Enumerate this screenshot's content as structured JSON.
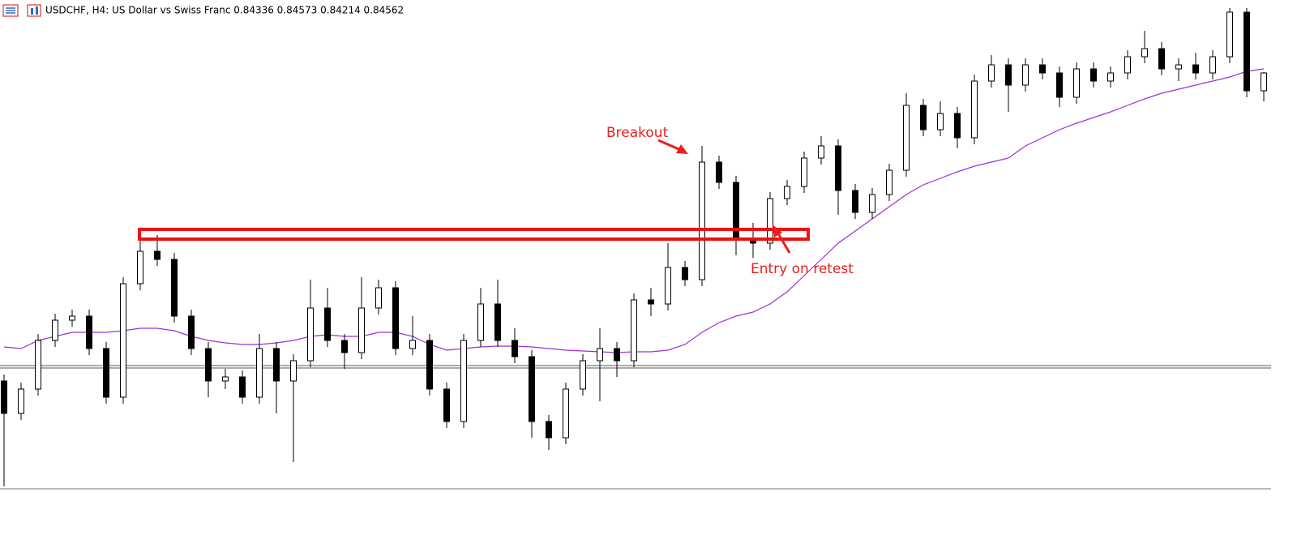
{
  "chart_data": {
    "type": "candlestick",
    "title": "USDCHF, H4:  US Dollar vs Swiss Franc  0.84336 0.84573 0.84214 0.84562",
    "annotations": [
      "Breakout",
      "Entry on retest"
    ],
    "ylim": [
      0.7943,
      0.8546
    ],
    "up_color": "#ffffff",
    "down_color": "#000000",
    "ma_color": "#9b30d9",
    "open": [
      0.8076,
      0.8036,
      0.8066,
      0.8126,
      0.8151,
      0.8156,
      0.8116,
      0.8056,
      0.8196,
      0.8236,
      0.8226,
      0.8156,
      0.8116,
      0.8076,
      0.8081,
      0.8056,
      0.8116,
      0.8076,
      0.8101,
      0.8166,
      0.8126,
      0.8111,
      0.8166,
      0.8191,
      0.8116,
      0.8126,
      0.8066,
      0.8026,
      0.8126,
      0.8171,
      0.8126,
      0.8106,
      0.8026,
      0.8006,
      0.8066,
      0.8101,
      0.8116,
      0.8101,
      0.8176,
      0.8171,
      0.8216,
      0.8201,
      0.8346,
      0.8321,
      0.8251,
      0.8246,
      0.8301,
      0.8316,
      0.8351,
      0.8366,
      0.8311,
      0.8284,
      0.8306,
      0.8336,
      0.8416,
      0.8386,
      0.8406,
      0.8376,
      0.8446,
      0.8466,
      0.8441,
      0.8466,
      0.8456,
      0.8426,
      0.8461,
      0.8446,
      0.8456,
      0.8476,
      0.8486,
      0.8461,
      0.8466,
      0.8456,
      0.8476,
      0.8531,
      0.8434
    ],
    "high": [
      0.8084,
      0.8074,
      0.8134,
      0.8159,
      0.8164,
      0.8164,
      0.8124,
      0.8204,
      0.8261,
      0.8256,
      0.8234,
      0.8164,
      0.8124,
      0.8091,
      0.8089,
      0.8134,
      0.8124,
      0.8109,
      0.8201,
      0.8191,
      0.8134,
      0.8204,
      0.8201,
      0.8199,
      0.8156,
      0.8134,
      0.8074,
      0.8134,
      0.8191,
      0.8201,
      0.8141,
      0.8114,
      0.8034,
      0.8074,
      0.8109,
      0.8141,
      0.8124,
      0.8184,
      0.8191,
      0.8246,
      0.8224,
      0.8366,
      0.8354,
      0.8329,
      0.8271,
      0.8309,
      0.8324,
      0.8359,
      0.8378,
      0.8374,
      0.8319,
      0.8314,
      0.8344,
      0.8431,
      0.8424,
      0.8421,
      0.8414,
      0.8454,
      0.8478,
      0.8474,
      0.8474,
      0.8474,
      0.8464,
      0.8469,
      0.8469,
      0.8464,
      0.8484,
      0.8508,
      0.8494,
      0.8474,
      0.8481,
      0.8484,
      0.8536,
      0.8536,
      0.8457
    ],
    "low": [
      0.7946,
      0.8028,
      0.8058,
      0.8118,
      0.8143,
      0.8108,
      0.8048,
      0.8048,
      0.8188,
      0.8218,
      0.8148,
      0.8108,
      0.8056,
      0.8066,
      0.8048,
      0.8048,
      0.8036,
      0.7976,
      0.8093,
      0.8118,
      0.8091,
      0.8103,
      0.8158,
      0.8108,
      0.8108,
      0.8058,
      0.8018,
      0.8018,
      0.8118,
      0.8118,
      0.8098,
      0.8006,
      0.7991,
      0.7998,
      0.8058,
      0.8051,
      0.8081,
      0.8093,
      0.8156,
      0.8163,
      0.8193,
      0.8193,
      0.8313,
      0.8231,
      0.8228,
      0.8238,
      0.8293,
      0.8308,
      0.8343,
      0.8281,
      0.8276,
      0.8276,
      0.8298,
      0.8328,
      0.8378,
      0.8378,
      0.8363,
      0.8368,
      0.8438,
      0.8408,
      0.8433,
      0.8448,
      0.8414,
      0.8418,
      0.8438,
      0.8438,
      0.8448,
      0.8468,
      0.8453,
      0.8446,
      0.8448,
      0.8448,
      0.8468,
      0.8426,
      0.8421
    ],
    "close": [
      0.8036,
      0.8066,
      0.8126,
      0.8151,
      0.8156,
      0.8116,
      0.8056,
      0.8196,
      0.8236,
      0.8226,
      0.8156,
      0.8116,
      0.8076,
      0.8081,
      0.8056,
      0.8116,
      0.8076,
      0.8101,
      0.8166,
      0.8126,
      0.8111,
      0.8166,
      0.8191,
      0.8116,
      0.8126,
      0.8066,
      0.8026,
      0.8126,
      0.8171,
      0.8126,
      0.8106,
      0.8026,
      0.8006,
      0.8066,
      0.8101,
      0.8116,
      0.8101,
      0.8176,
      0.8171,
      0.8216,
      0.8201,
      0.8346,
      0.8321,
      0.8251,
      0.8246,
      0.8301,
      0.8316,
      0.8351,
      0.8366,
      0.8311,
      0.8284,
      0.8306,
      0.8336,
      0.8416,
      0.8386,
      0.8406,
      0.8376,
      0.8446,
      0.8466,
      0.8441,
      0.8466,
      0.8456,
      0.8426,
      0.8461,
      0.8446,
      0.8456,
      0.8476,
      0.8486,
      0.8461,
      0.8466,
      0.8456,
      0.8476,
      0.8531,
      0.8434,
      0.8456
    ],
    "ma": [
      0.8118,
      0.8116,
      0.8126,
      0.8131,
      0.8136,
      0.8136,
      0.8136,
      0.8138,
      0.8141,
      0.8141,
      0.8138,
      0.8131,
      0.8126,
      0.8123,
      0.8121,
      0.8121,
      0.8123,
      0.8126,
      0.8131,
      0.8133,
      0.8131,
      0.8131,
      0.8136,
      0.8136,
      0.8131,
      0.8121,
      0.8114,
      0.8116,
      0.8118,
      0.8119,
      0.8119,
      0.8118,
      0.8116,
      0.8114,
      0.8113,
      0.8112,
      0.8111,
      0.8112,
      0.8112,
      0.8114,
      0.8121,
      0.8136,
      0.8148,
      0.8156,
      0.8161,
      0.8171,
      0.8186,
      0.8206,
      0.8226,
      0.8246,
      0.8261,
      0.8276,
      0.8291,
      0.8306,
      0.8318,
      0.8326,
      0.8334,
      0.8341,
      0.8346,
      0.8351,
      0.8366,
      0.8376,
      0.8386,
      0.8394,
      0.8401,
      0.8408,
      0.8416,
      0.8424,
      0.8431,
      0.8436,
      0.8441,
      0.8446,
      0.8451,
      0.8458,
      0.8461
    ]
  }
}
